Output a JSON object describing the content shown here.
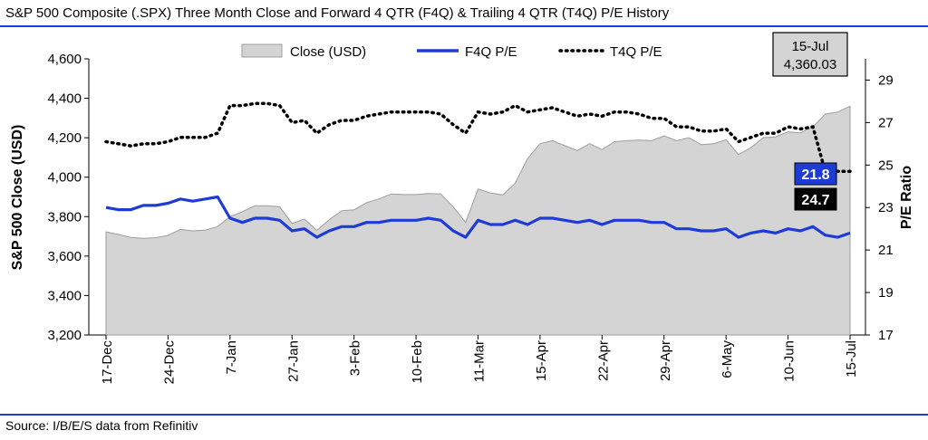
{
  "title": "S&P 500 Composite (.SPX) Three Month Close and Forward 4 QTR (F4Q) & Trailing 4 QTR (T4Q) P/E History",
  "source": "Source: I/B/E/S data from Refinitiv",
  "colors": {
    "accent": "#1f3bd6",
    "area_fill": "#d4d4d4",
    "area_stroke": "#9e9e9e",
    "f4q": "#1f3bd6",
    "t4q": "#000000"
  },
  "callout": {
    "date": "15-Jul",
    "value": "4,360.03"
  },
  "labels": {
    "f4q_end": "21.8",
    "t4q_end": "24.7"
  },
  "chart_data": {
    "type": "line",
    "ylabel": "S&P 500 Close (USD)",
    "y2label": "P/E Ratio",
    "ylim": [
      3200,
      4600
    ],
    "y2lim": [
      17,
      30
    ],
    "yticks": [
      "4,600",
      "4,400",
      "4,200",
      "4,000",
      "3,800",
      "3,600",
      "3,400",
      "3,200"
    ],
    "y2ticks": [
      "29",
      "27",
      "25",
      "23",
      "21",
      "19",
      "17"
    ],
    "xticks": [
      "17-Dec",
      "24-Dec",
      "7-Jan",
      "27-Jan",
      "3-Feb",
      "10-Feb",
      "11-Mar",
      "15-Apr",
      "22-Apr",
      "29-Apr",
      "6-May",
      "10-Jun",
      "15-Jul"
    ],
    "legend": {
      "position": "top",
      "items": [
        "Close (USD)",
        "F4Q P/E",
        "T4Q P/E"
      ]
    },
    "series": [
      {
        "name": "Close (USD)",
        "kind": "area",
        "axis": "left",
        "values": [
          3723,
          3710,
          3695,
          3690,
          3693,
          3705,
          3735,
          3728,
          3732,
          3750,
          3800,
          3825,
          3855,
          3855,
          3850,
          3765,
          3788,
          3730,
          3785,
          3830,
          3835,
          3870,
          3890,
          3915,
          3912,
          3912,
          3917,
          3915,
          3850,
          3770,
          3940,
          3920,
          3910,
          3970,
          4095,
          4170,
          4185,
          4160,
          4135,
          4170,
          4140,
          4180,
          4185,
          4188,
          4185,
          4210,
          4185,
          4200,
          4165,
          4170,
          4190,
          4115,
          4150,
          4200,
          4205,
          4230,
          4225,
          4255,
          4320,
          4330,
          4360
        ]
      },
      {
        "name": "F4Q P/E",
        "kind": "line",
        "axis": "right",
        "values": [
          23.0,
          22.9,
          22.9,
          23.1,
          23.1,
          23.2,
          23.4,
          23.3,
          23.4,
          23.5,
          22.5,
          22.3,
          22.5,
          22.5,
          22.4,
          21.9,
          22.0,
          21.6,
          21.9,
          22.1,
          22.1,
          22.3,
          22.3,
          22.4,
          22.4,
          22.4,
          22.5,
          22.4,
          21.9,
          21.6,
          22.4,
          22.2,
          22.2,
          22.4,
          22.2,
          22.5,
          22.5,
          22.4,
          22.3,
          22.4,
          22.2,
          22.4,
          22.4,
          22.4,
          22.3,
          22.3,
          22.0,
          22.0,
          21.9,
          21.9,
          22.0,
          21.6,
          21.8,
          21.9,
          21.8,
          22.0,
          21.9,
          22.1,
          21.7,
          21.6,
          21.8
        ]
      },
      {
        "name": "T4Q P/E",
        "kind": "dotted",
        "axis": "right",
        "values": [
          26.1,
          26.0,
          25.9,
          26.0,
          26.0,
          26.1,
          26.3,
          26.3,
          26.3,
          26.5,
          27.8,
          27.8,
          27.9,
          27.9,
          27.8,
          27.0,
          27.1,
          26.5,
          26.9,
          27.1,
          27.1,
          27.3,
          27.4,
          27.5,
          27.5,
          27.5,
          27.5,
          27.4,
          26.9,
          26.5,
          27.5,
          27.4,
          27.5,
          27.8,
          27.5,
          27.6,
          27.7,
          27.5,
          27.3,
          27.4,
          27.3,
          27.5,
          27.5,
          27.4,
          27.2,
          27.2,
          26.8,
          26.8,
          26.6,
          26.6,
          26.7,
          26.1,
          26.3,
          26.5,
          26.5,
          26.8,
          26.7,
          26.8,
          24.7,
          24.7,
          24.7
        ]
      }
    ]
  }
}
